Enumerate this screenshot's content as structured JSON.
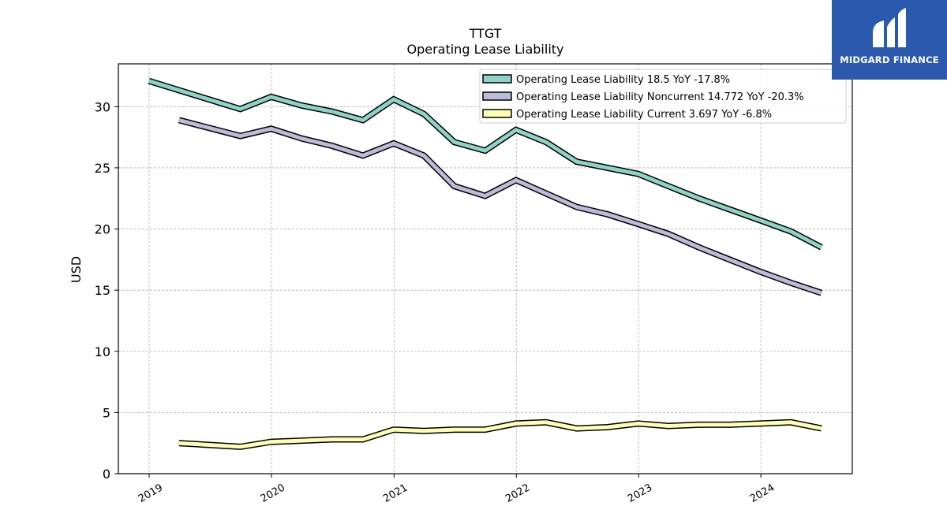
{
  "logo": {
    "text": "MIDGARD FINANCE",
    "color": "#2b59ad"
  },
  "chart_data": {
    "type": "line",
    "title": "TTGT",
    "subtitle": "Operating Lease Liability",
    "ylabel": "USD",
    "xlabel": "",
    "ylim": [
      0,
      33.5
    ],
    "xlim": [
      "2018-10-01",
      "2024-09-30"
    ],
    "yticks": [
      0,
      5,
      10,
      15,
      20,
      25,
      30
    ],
    "xticks": [
      "2019",
      "2020",
      "2021",
      "2022",
      "2023",
      "2024"
    ],
    "grid": true,
    "legend_position": "top-right",
    "series": [
      {
        "name": "Operating Lease Liability",
        "legend_label": "Operating Lease Liability  18.5 YoY -17.8%",
        "color": "#8dd3c7",
        "x": [
          "2018-12-31",
          "2019-09-30",
          "2019-12-31",
          "2020-03-31",
          "2020-06-30",
          "2020-09-30",
          "2020-12-31",
          "2021-03-31",
          "2021-06-30",
          "2021-09-30",
          "2021-12-31",
          "2022-03-31",
          "2022-06-30",
          "2022-09-30",
          "2022-12-31",
          "2023-03-31",
          "2023-06-30",
          "2023-09-30",
          "2023-12-31",
          "2024-03-31",
          "2024-06-30"
        ],
        "values": [
          32.1,
          29.8,
          30.8,
          30.1,
          29.6,
          28.9,
          30.6,
          29.4,
          27.1,
          26.4,
          28.1,
          27.1,
          25.5,
          25.0,
          24.5,
          23.5,
          22.5,
          21.6,
          20.7,
          19.8,
          18.5
        ]
      },
      {
        "name": "Operating Lease Liability Noncurrent",
        "legend_label": "Operating Lease Liability Noncurrent  14.772 YoY -20.3%",
        "color": "#bebada",
        "x": [
          "2019-03-31",
          "2019-09-30",
          "2019-12-31",
          "2020-03-31",
          "2020-06-30",
          "2020-09-30",
          "2020-12-31",
          "2021-03-31",
          "2021-06-30",
          "2021-09-30",
          "2021-12-31",
          "2022-03-31",
          "2022-06-30",
          "2022-09-30",
          "2022-12-31",
          "2023-03-31",
          "2023-06-30",
          "2023-09-30",
          "2023-12-31",
          "2024-03-31",
          "2024-06-30"
        ],
        "values": [
          28.9,
          27.6,
          28.2,
          27.4,
          26.8,
          26.0,
          27.0,
          26.0,
          23.5,
          22.7,
          24.0,
          22.9,
          21.8,
          21.2,
          20.4,
          19.6,
          18.5,
          17.5,
          16.5,
          15.6,
          14.772
        ]
      },
      {
        "name": "Operating Lease Liability Current",
        "legend_label": "Operating Lease Liability Current  3.697 YoY -6.8%",
        "color": "#ffffb3",
        "x": [
          "2019-03-31",
          "2019-09-30",
          "2019-12-31",
          "2020-03-31",
          "2020-06-30",
          "2020-09-30",
          "2020-12-31",
          "2021-03-31",
          "2021-06-30",
          "2021-09-30",
          "2021-12-31",
          "2022-03-31",
          "2022-06-30",
          "2022-09-30",
          "2022-12-31",
          "2023-03-31",
          "2023-06-30",
          "2023-09-30",
          "2023-12-31",
          "2024-03-31",
          "2024-06-30"
        ],
        "values": [
          2.5,
          2.2,
          2.6,
          2.7,
          2.8,
          2.8,
          3.6,
          3.5,
          3.6,
          3.6,
          4.1,
          4.2,
          3.7,
          3.8,
          4.1,
          3.9,
          4.0,
          4.0,
          4.1,
          4.2,
          3.697
        ]
      }
    ]
  }
}
